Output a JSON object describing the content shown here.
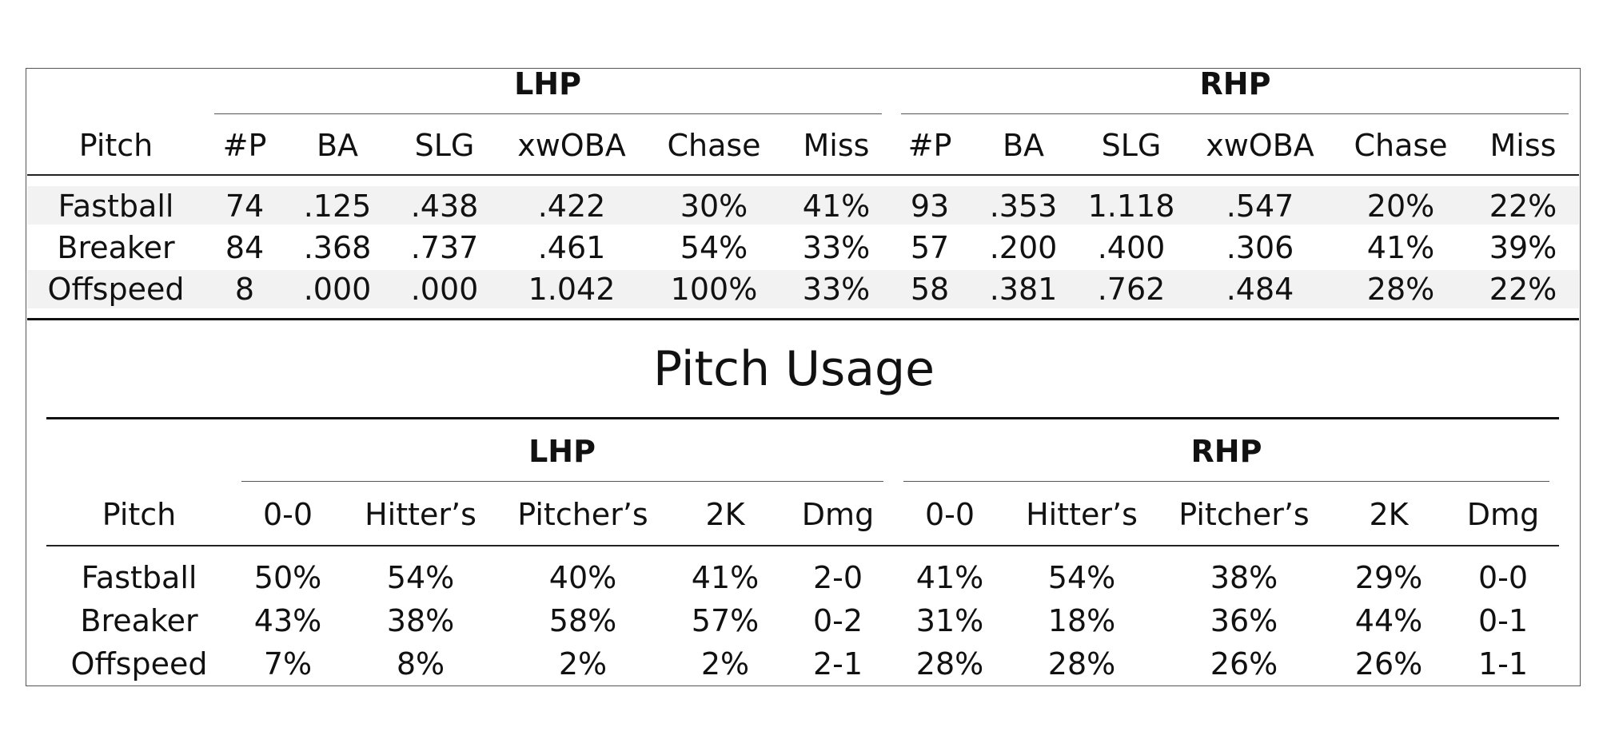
{
  "performance": {
    "groups": [
      "LHP",
      "RHP"
    ],
    "headers": [
      "Pitch",
      "#P",
      "BA",
      "SLG",
      "xwOBA",
      "Chase",
      "Miss",
      "#P",
      "BA",
      "SLG",
      "xwOBA",
      "Chase",
      "Miss"
    ],
    "rows": [
      [
        "Fastball",
        "74",
        ".125",
        ".438",
        ".422",
        "30%",
        "41%",
        "93",
        ".353",
        "1.118",
        ".547",
        "20%",
        "22%"
      ],
      [
        "Breaker",
        "84",
        ".368",
        ".737",
        ".461",
        "54%",
        "33%",
        "57",
        ".200",
        ".400",
        ".306",
        "41%",
        "39%"
      ],
      [
        "Offspeed",
        "8",
        ".000",
        ".000",
        "1.042",
        "100%",
        "33%",
        "58",
        ".381",
        ".762",
        ".484",
        "28%",
        "22%"
      ]
    ]
  },
  "usage": {
    "title": "Pitch Usage",
    "groups": [
      "LHP",
      "RHP"
    ],
    "headers": [
      "Pitch",
      "0-0",
      "Hitter’s",
      "Pitcher’s",
      "2K",
      "Dmg",
      "0-0",
      "Hitter’s",
      "Pitcher’s",
      "2K",
      "Dmg"
    ],
    "rows": [
      [
        "Fastball",
        "50%",
        "54%",
        "40%",
        "41%",
        "2-0",
        "41%",
        "54%",
        "38%",
        "29%",
        "0-0"
      ],
      [
        "Breaker",
        "43%",
        "38%",
        "58%",
        "57%",
        "0-2",
        "31%",
        "18%",
        "36%",
        "44%",
        "0-1"
      ],
      [
        "Offspeed",
        "7%",
        "8%",
        "2%",
        "2%",
        "2-1",
        "28%",
        "28%",
        "26%",
        "26%",
        "1-1"
      ]
    ]
  }
}
